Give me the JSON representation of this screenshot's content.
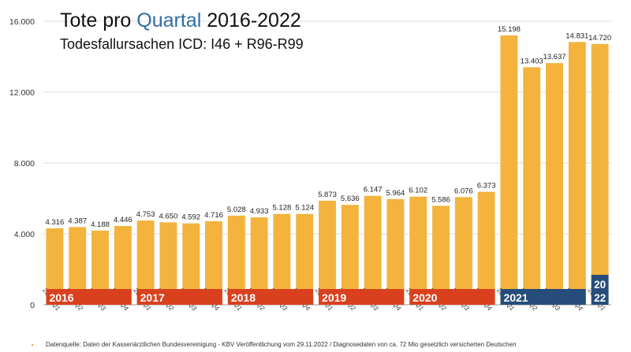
{
  "chart_data": {
    "type": "bar",
    "title_prefix": "Tote pro ",
    "title_highlight": "Quartal",
    "title_suffix": " 2016-2022",
    "subtitle": "Todesfallursachen ICD: I46 + R96-R99",
    "source": "Datenquelle: Daten der Kassenärztlichen Bundesvereinigung - KBV Veröffentlichung vom 29.11.2022 / Diagnosedaten von ca. 72 Mio gesetzlich versicherten Deutschen",
    "categories": [
      "2016 Q1",
      "2016 Q2",
      "2016 Q3",
      "2016 Q4",
      "2017 Q1",
      "2017 Q2",
      "2017 Q3",
      "2017 Q4",
      "2018 Q1",
      "2018 Q2",
      "2018 Q3",
      "2018 Q4",
      "2019 Q1",
      "2019 Q2",
      "2019 Q3",
      "2019 Q4",
      "2020 Q1",
      "2020 Q2",
      "2020 Q3",
      "2020 Q4",
      "2021 Q1",
      "2021 Q2",
      "2021 Q3",
      "2021 Q4",
      "2022 Q1"
    ],
    "values": [
      4316,
      4387,
      4188,
      4446,
      4753,
      4650,
      4592,
      4716,
      5028,
      4933,
      5128,
      5124,
      5873,
      5636,
      6147,
      5964,
      6102,
      5586,
      6076,
      6373,
      15198,
      13403,
      13637,
      14831,
      14720
    ],
    "value_labels": [
      "4.316",
      "4.387",
      "4.188",
      "4.446",
      "4.753",
      "4.650",
      "4.592",
      "4.716",
      "5.028",
      "4.933",
      "5.128",
      "5.124",
      "5.873",
      "5.636",
      "6.147",
      "5.964",
      "6.102",
      "5.586",
      "6.076",
      "6.373",
      "15.198",
      "13.403",
      "13.637",
      "14.831",
      "14.720"
    ],
    "ylim": [
      0,
      16000
    ],
    "yticks": [
      0,
      4000,
      8000,
      12000,
      16000
    ],
    "ytick_labels": [
      "0",
      "4.000",
      "8.000",
      "12.000",
      "16.000"
    ],
    "year_bands": [
      {
        "label": "2016",
        "start": 0,
        "count": 4,
        "color": "#d9411e"
      },
      {
        "label": "2017",
        "start": 4,
        "count": 4,
        "color": "#d9411e"
      },
      {
        "label": "2018",
        "start": 8,
        "count": 4,
        "color": "#d9411e"
      },
      {
        "label": "2019",
        "start": 12,
        "count": 4,
        "color": "#d9411e"
      },
      {
        "label": "2020",
        "start": 16,
        "count": 4,
        "color": "#d9411e"
      },
      {
        "label": "2021",
        "start": 20,
        "count": 4,
        "color": "#264d7a"
      },
      {
        "label": "2022",
        "start": 24,
        "count": 1,
        "color": "#264d7a",
        "stacked": [
          "20",
          "22"
        ]
      }
    ],
    "bar_color": "#f3b33d",
    "title_color": "#111111",
    "highlight_color": "#2f6ea5",
    "grid": true
  }
}
